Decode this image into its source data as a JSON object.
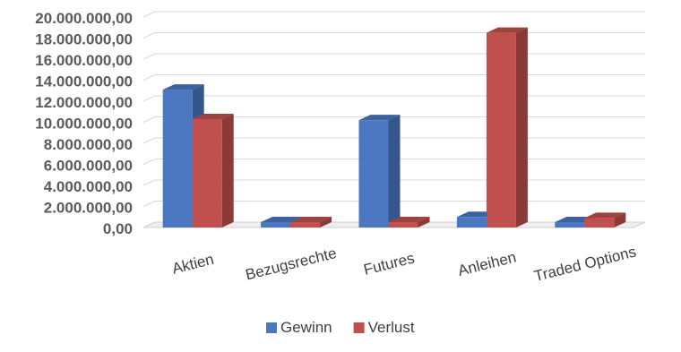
{
  "chart_data": {
    "type": "bar",
    "style": "3d-clustered-column",
    "categories": [
      "Aktien",
      "Bezugsrechte",
      "Futures",
      "Anleihen",
      "Traded Options"
    ],
    "series": [
      {
        "name": "Gewinn",
        "color": "#4a77c0",
        "values": [
          13100000,
          0,
          10200000,
          1000000,
          0
        ]
      },
      {
        "name": "Verlust",
        "color": "#c0504d",
        "values": [
          10300000,
          0,
          0,
          18500000,
          900000
        ]
      }
    ],
    "y_tick_labels": [
      "0,00",
      "2.000.000,00",
      "4.000.000,00",
      "6.000.000,00",
      "8.000.000,00",
      "10.000.000,00",
      "12.000.000,00",
      "14.000.000,00",
      "16.000.000,00",
      "18.000.000,00",
      "20.000.000,00"
    ],
    "ylim": [
      0,
      20000000
    ],
    "grid": true,
    "legend_position": "bottom"
  }
}
